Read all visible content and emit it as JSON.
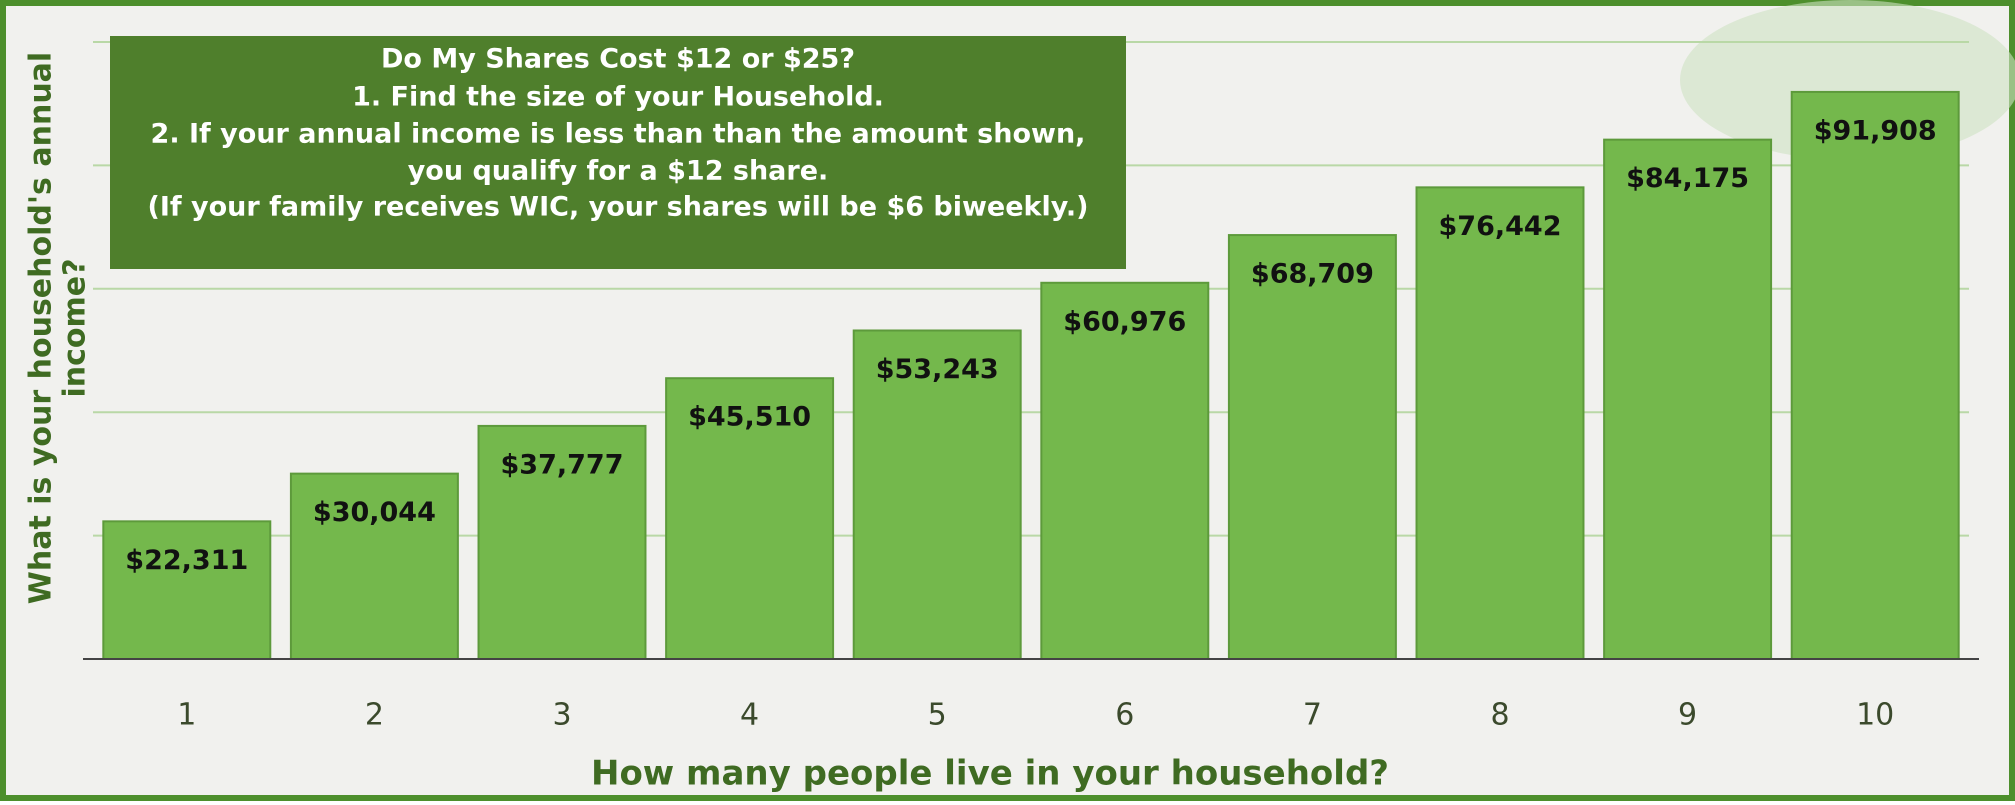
{
  "chart_data": {
    "type": "bar",
    "title_lines": [
      "Do My Shares Cost $12 or $25?",
      "1. Find the size of your Household.",
      "2. If your annual income is less than than the amount shown,",
      "you qualify for a $12 share.",
      "(If your family receives WIC, your shares will be $6 biweekly.)"
    ],
    "x_label": "How many people live in your household?",
    "y_label_lines": [
      "What is your household's annual",
      "income?"
    ],
    "categories": [
      "1",
      "2",
      "3",
      "4",
      "5",
      "6",
      "7",
      "8",
      "9",
      "10"
    ],
    "values": [
      22311,
      30044,
      37777,
      45510,
      53243,
      60976,
      68709,
      76442,
      84175,
      91908
    ],
    "value_labels": [
      "$22,311",
      "$30,044",
      "$37,777",
      "$45,510",
      "$53,243",
      "$60,976",
      "$68,709",
      "$76,442",
      "$84,175",
      "$91,908"
    ],
    "color": "#74b84c",
    "ylim": [
      0,
      100000
    ],
    "yticks": [
      0,
      20000,
      40000,
      60000,
      80000,
      100000
    ],
    "grid": true
  }
}
